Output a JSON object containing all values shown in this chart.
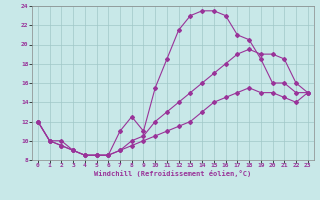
{
  "xlabel": "Windchill (Refroidissement éolien,°C)",
  "xlim": [
    -0.5,
    23.5
  ],
  "ylim": [
    8,
    24
  ],
  "xticks": [
    0,
    1,
    2,
    3,
    4,
    5,
    6,
    7,
    8,
    9,
    10,
    11,
    12,
    13,
    14,
    15,
    16,
    17,
    18,
    19,
    20,
    21,
    22,
    23
  ],
  "yticks": [
    8,
    10,
    12,
    14,
    16,
    18,
    20,
    22,
    24
  ],
  "bg_color": "#c8e8e8",
  "line_color": "#993399",
  "line1_x": [
    0,
    1,
    2,
    3,
    4,
    5,
    6,
    7,
    8,
    9,
    10,
    11,
    12,
    13,
    14,
    15,
    16,
    17,
    18,
    19,
    20,
    21,
    22,
    23
  ],
  "line1_y": [
    12,
    10,
    10,
    9,
    8.5,
    8.5,
    8.5,
    11,
    12.5,
    11,
    15.5,
    18.5,
    21.5,
    23.0,
    23.5,
    23.5,
    23.0,
    21,
    20.5,
    18.5,
    16,
    16,
    15,
    15
  ],
  "line2_x": [
    0,
    1,
    2,
    3,
    4,
    5,
    6,
    7,
    8,
    9,
    10,
    11,
    12,
    13,
    14,
    15,
    16,
    17,
    18,
    19,
    20,
    21,
    22,
    23
  ],
  "line2_y": [
    12,
    10,
    9.5,
    9,
    8.5,
    8.5,
    8.5,
    9,
    10,
    10.5,
    12,
    13,
    14,
    15,
    16,
    17,
    18,
    19,
    19.5,
    19,
    19,
    18.5,
    16,
    15
  ],
  "line3_x": [
    0,
    1,
    2,
    3,
    4,
    5,
    6,
    7,
    8,
    9,
    10,
    11,
    12,
    13,
    14,
    15,
    16,
    17,
    18,
    19,
    20,
    21,
    22,
    23
  ],
  "line3_y": [
    12,
    10,
    9.5,
    9,
    8.5,
    8.5,
    8.5,
    9,
    9.5,
    10,
    10.5,
    11,
    11.5,
    12,
    13,
    14,
    14.5,
    15,
    15.5,
    15,
    15,
    14.5,
    14,
    15
  ]
}
